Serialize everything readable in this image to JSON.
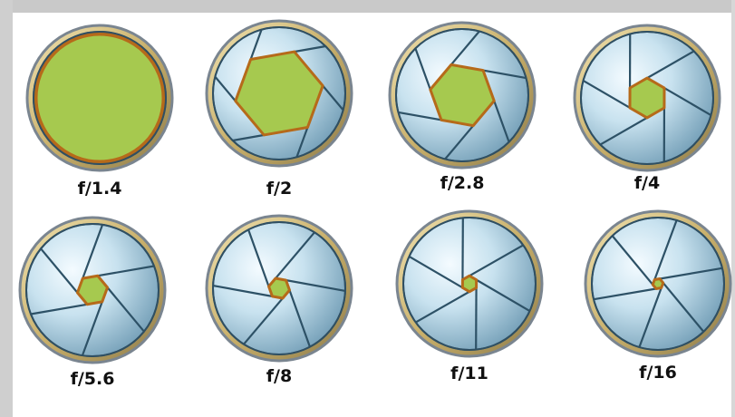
{
  "colors": {
    "opening": "#a6c94f",
    "opening_edge": "#b66a1a",
    "rim_outer": "#7a8590",
    "rim_gold": "#d5bd7a",
    "blade_light": "#eef6fb",
    "blade_dark": "#6f9bb4",
    "blade_line": "#2d5166",
    "frame": "#c9c9c9"
  },
  "apertures": [
    {
      "label": "f/1.4",
      "open_fraction": 0.9
    },
    {
      "label": "f/2",
      "open_fraction": 0.67
    },
    {
      "label": "f/2.8",
      "open_fraction": 0.49
    },
    {
      "label": "f/4",
      "open_fraction": 0.3
    },
    {
      "label": "f/5.6",
      "open_fraction": 0.23
    },
    {
      "label": "f/8",
      "open_fraction": 0.16
    },
    {
      "label": "f/11",
      "open_fraction": 0.12
    },
    {
      "label": "f/16",
      "open_fraction": 0.08
    }
  ]
}
